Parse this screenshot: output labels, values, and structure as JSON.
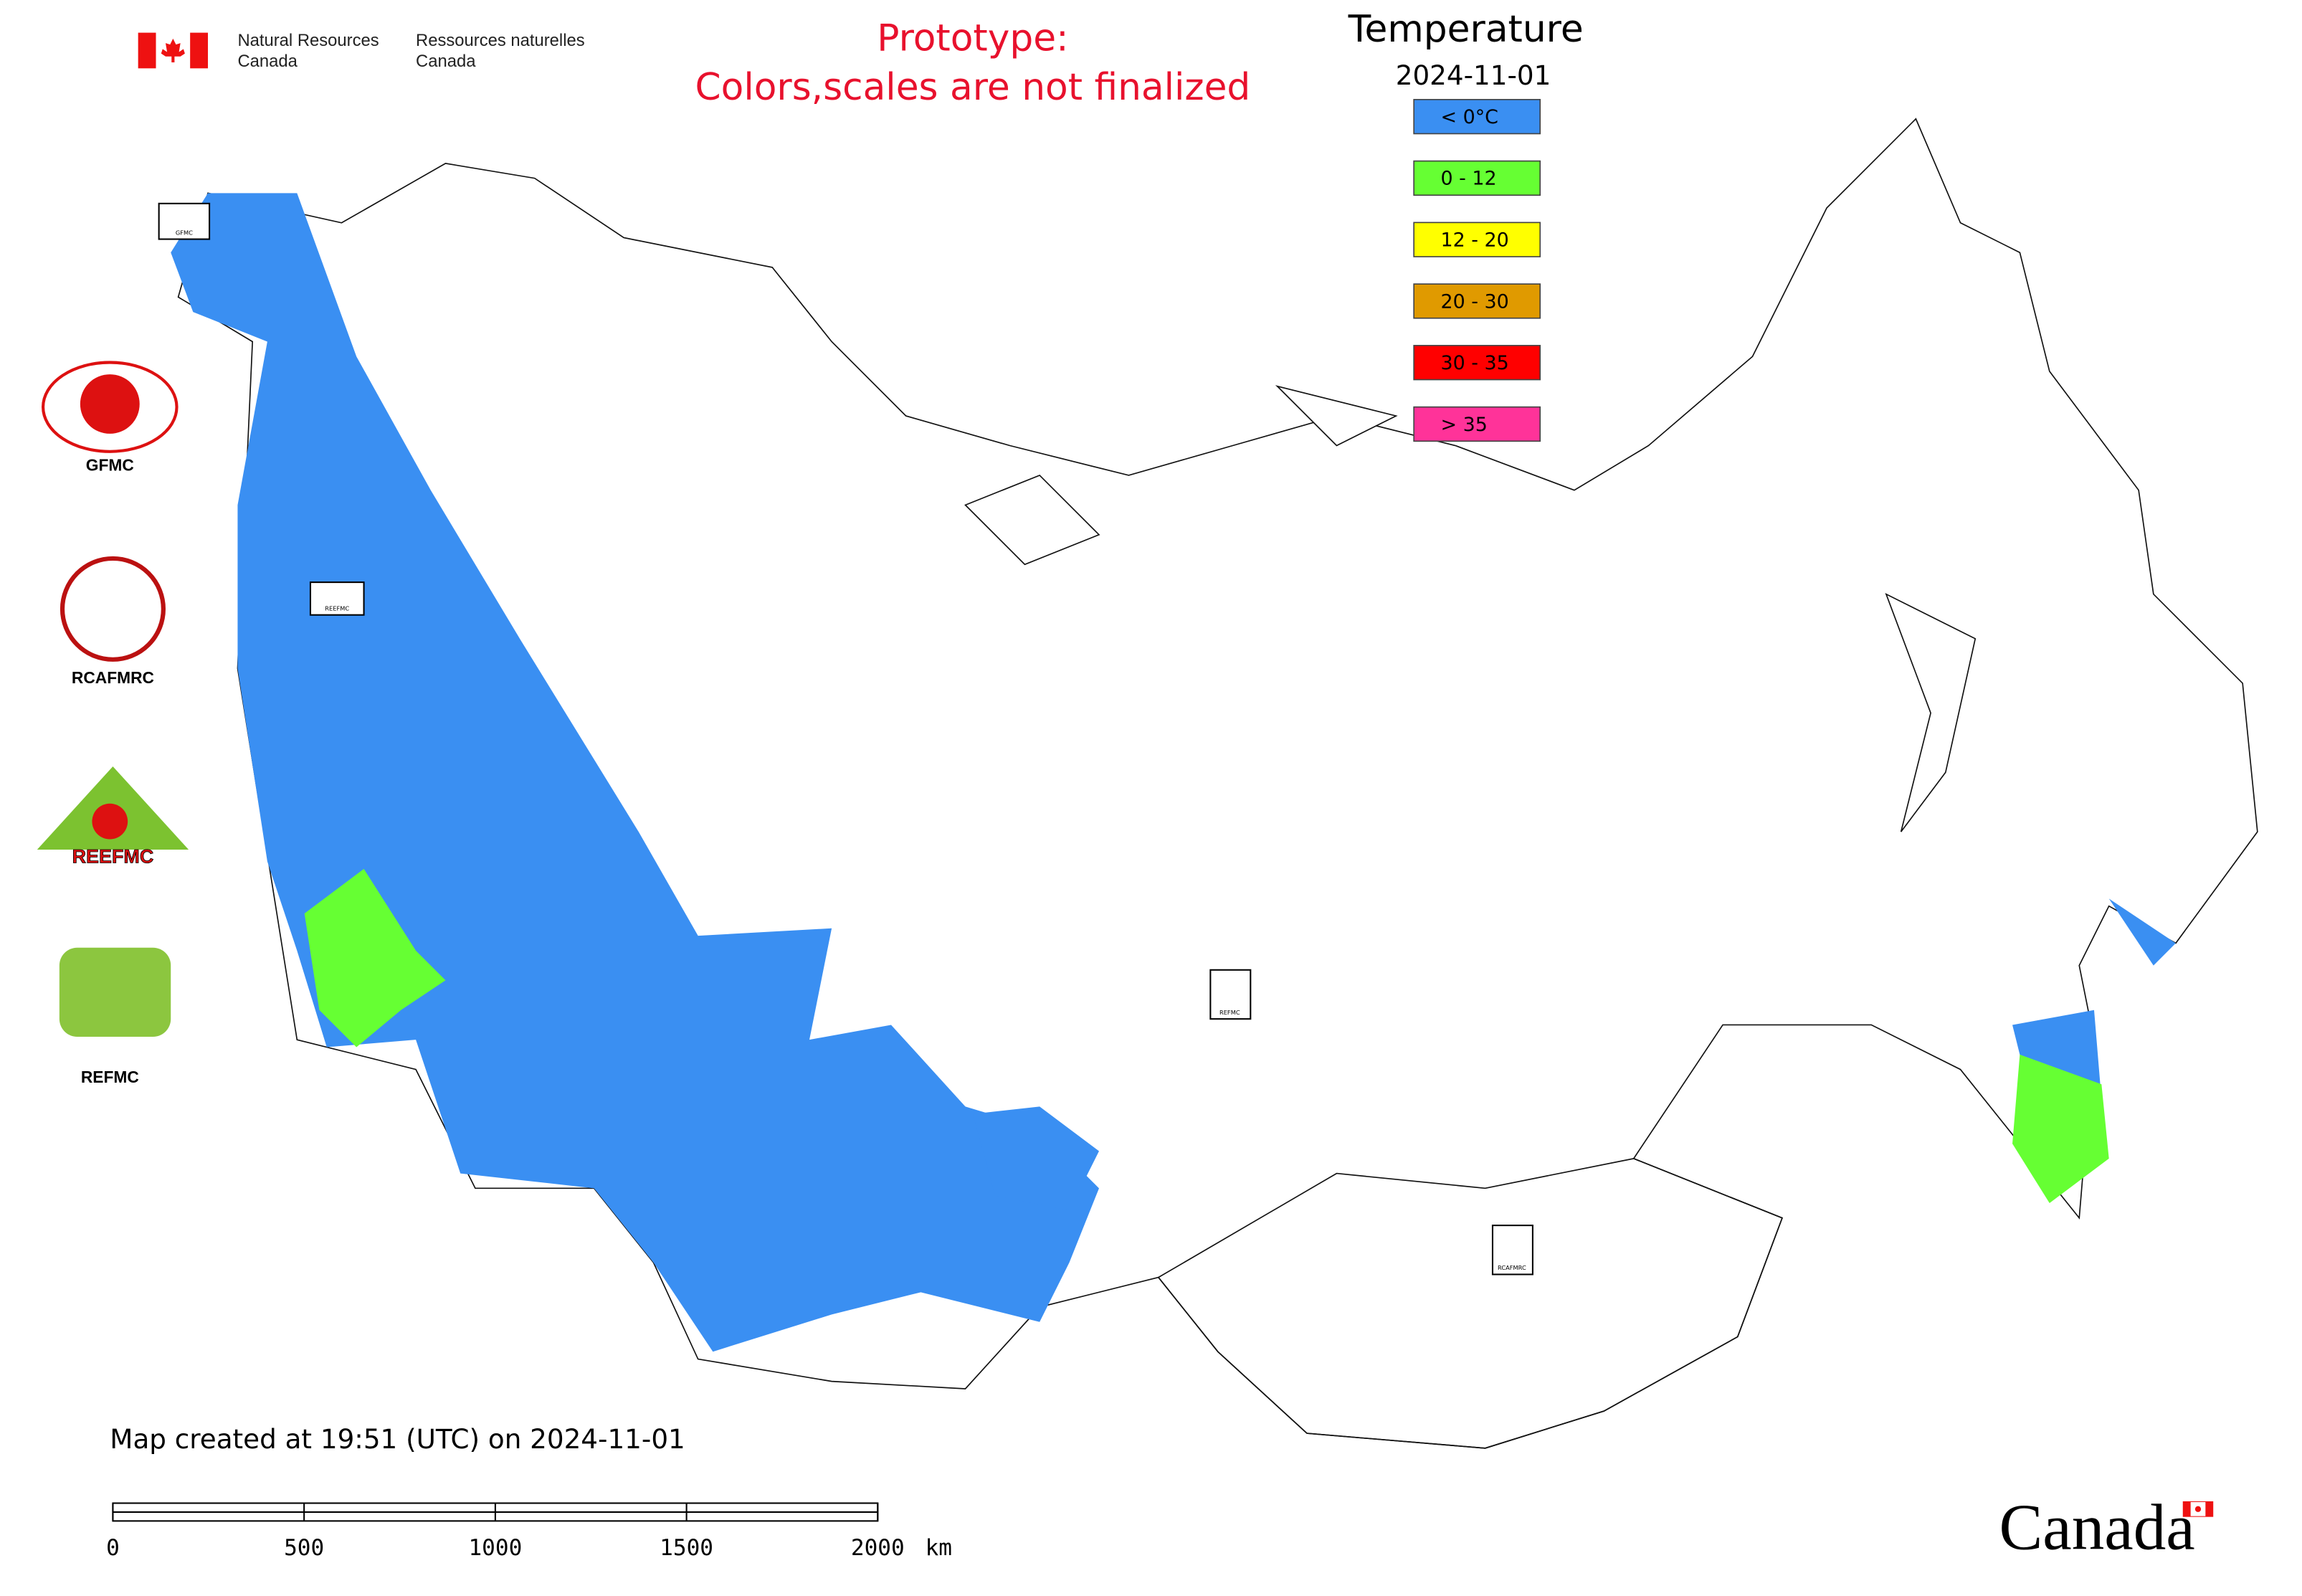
{
  "header": {
    "agency_en": [
      "Natural Resources",
      "Canada"
    ],
    "agency_fr": [
      "Ressources naturelles",
      "Canada"
    ]
  },
  "notice": [
    "Prototype:",
    "Colors,scales are not finalized"
  ],
  "legend": {
    "title": "Temperature",
    "date": "2024-11-01",
    "items": [
      {
        "label": "< 0°C",
        "color": "#3a8ff2"
      },
      {
        "label": "0 - 12",
        "color": "#66ff33"
      },
      {
        "label": "12 - 20",
        "color": "#ffff00"
      },
      {
        "label": "20 - 30",
        "color": "#e09a00"
      },
      {
        "label": "30 - 35",
        "color": "#ff0000"
      },
      {
        "label": "> 35",
        "color": "#ff3399"
      }
    ]
  },
  "logos": [
    "GFMC",
    "RCAFMRC",
    "REEFMC",
    "REFMC"
  ],
  "footer": {
    "created": "Map created at 19:51 (UTC) on 2024-11-01",
    "scale": {
      "ticks": [
        0,
        500,
        1000,
        1500,
        2000
      ],
      "unit": "km"
    }
  },
  "wordmark": "Canada"
}
